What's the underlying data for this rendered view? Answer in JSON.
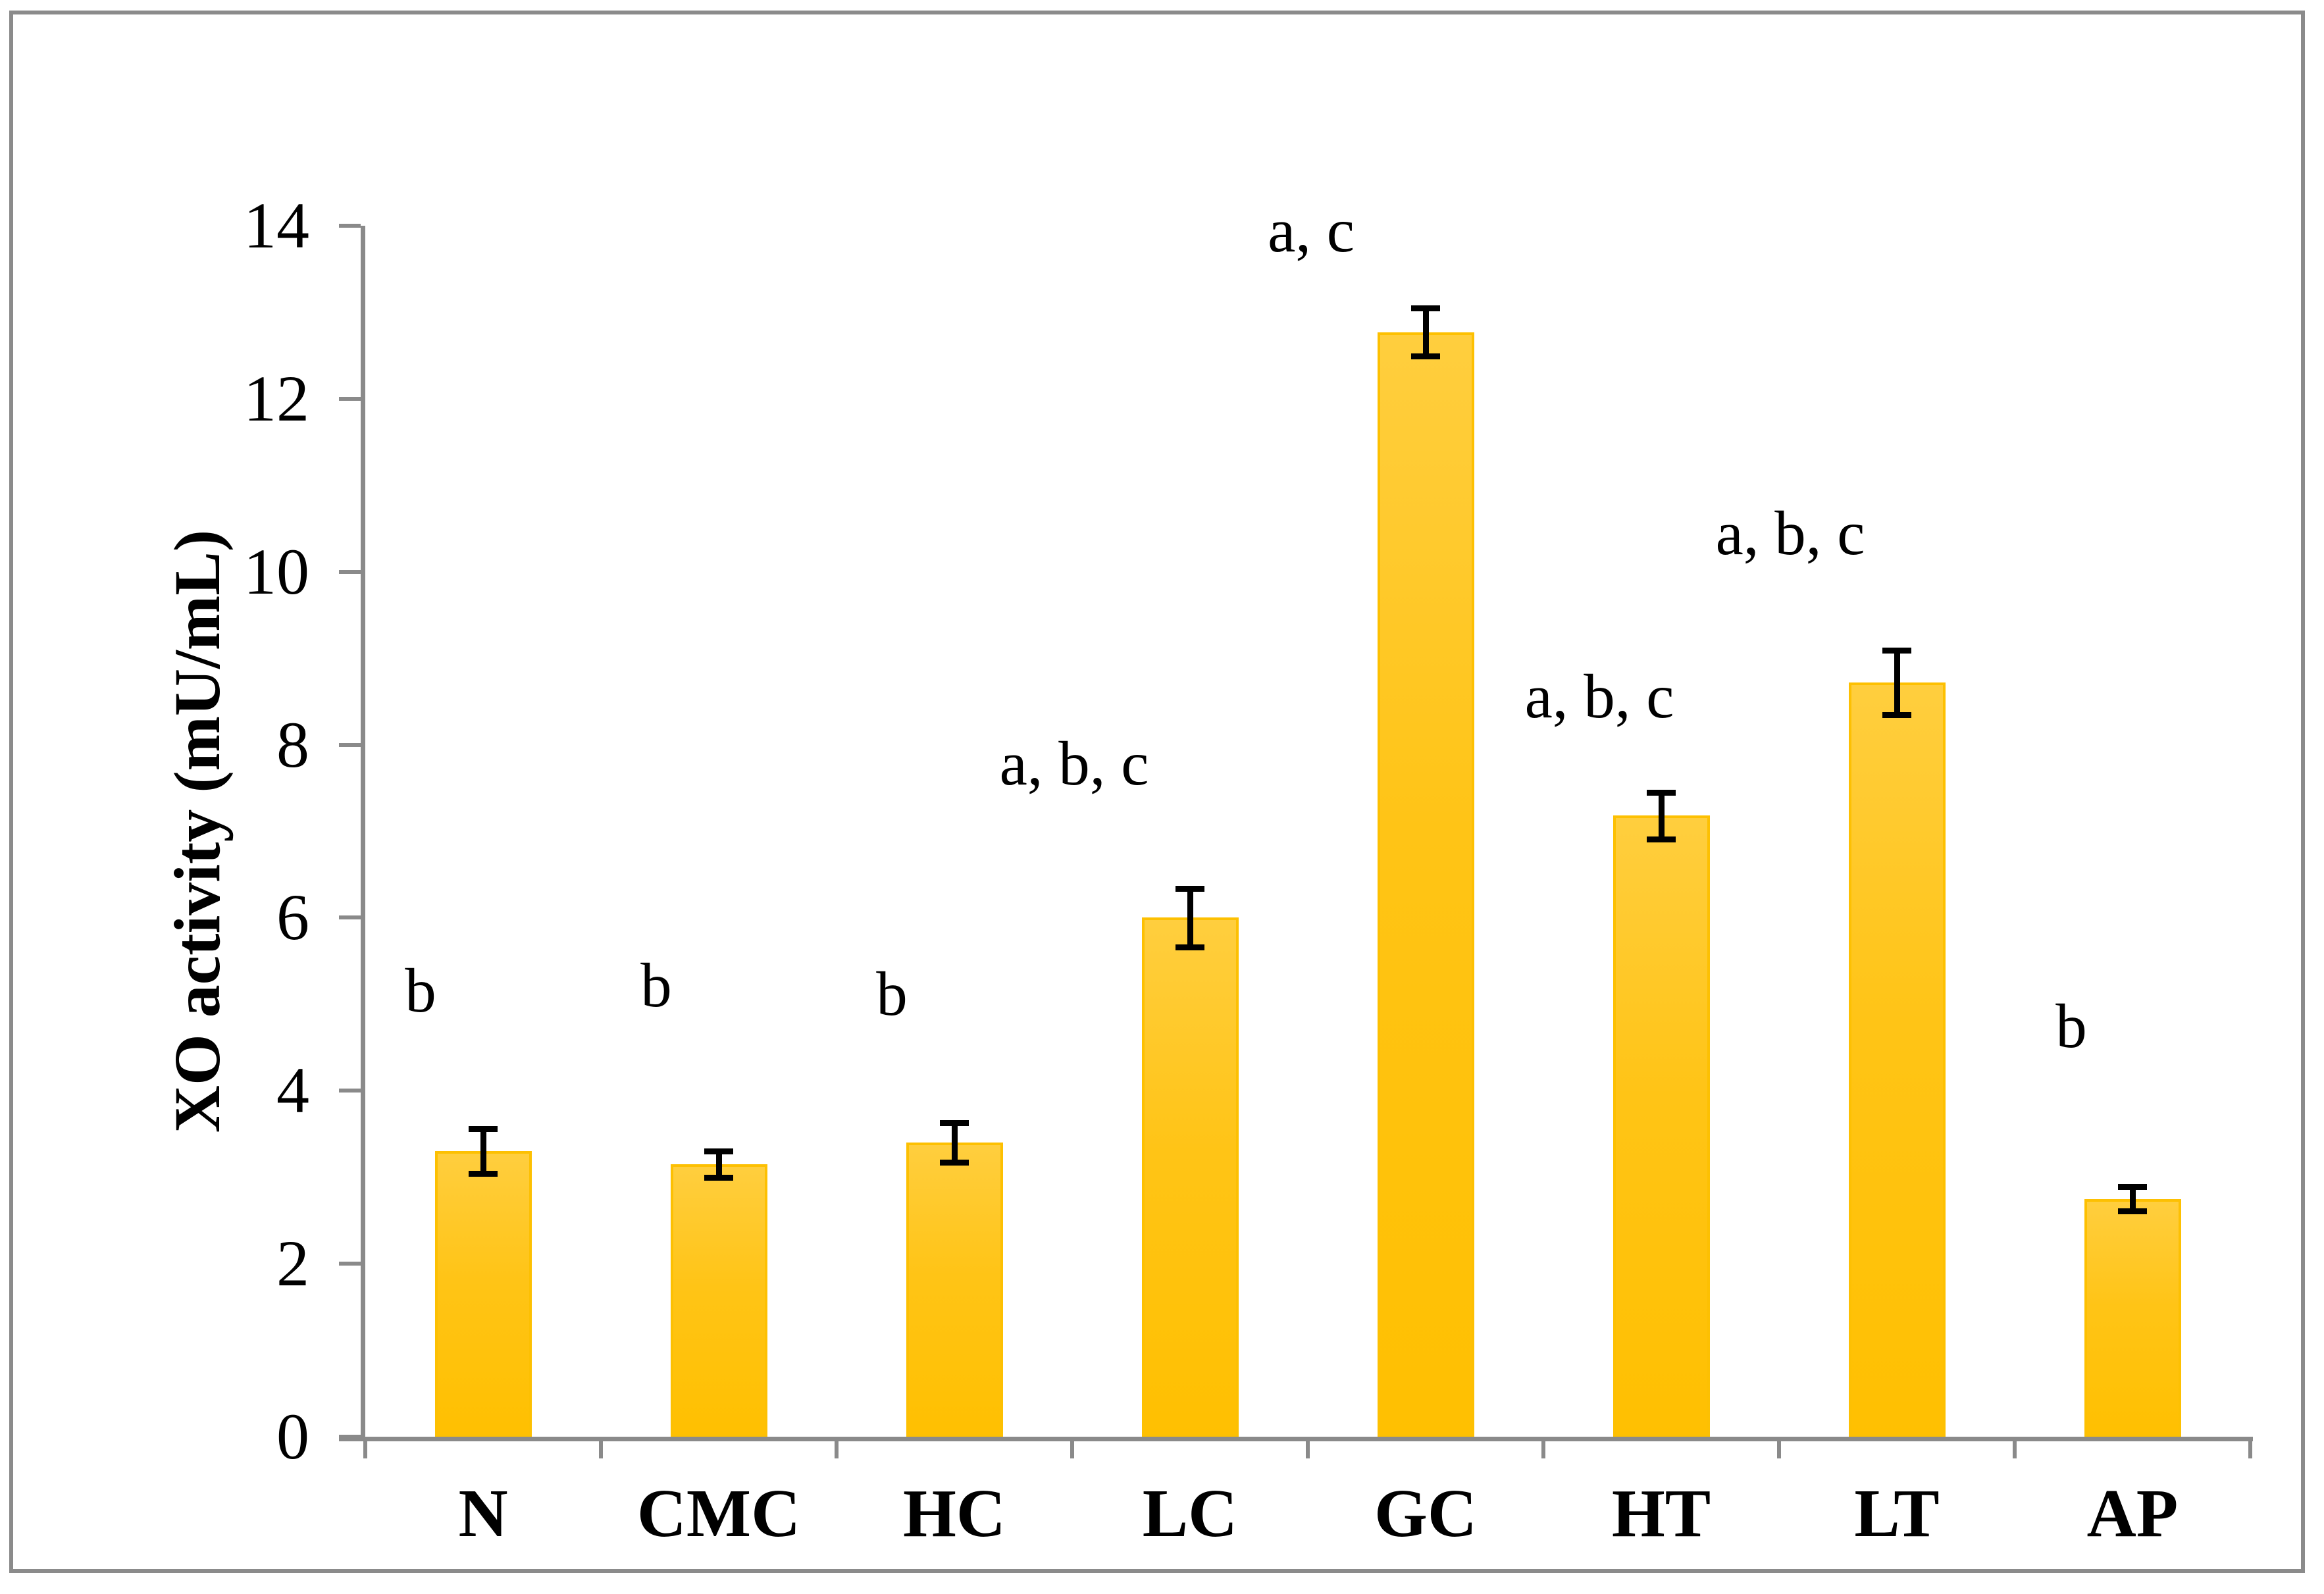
{
  "figure": {
    "background": "#ffffff",
    "border_color": "#8b8b8b"
  },
  "chart_data": {
    "type": "bar",
    "title": "",
    "xlabel": "",
    "ylabel": "XO activity (mU/mL)",
    "ylim": [
      0,
      14
    ],
    "yticks": [
      0,
      2,
      4,
      6,
      8,
      10,
      12,
      14
    ],
    "grid": false,
    "legend": null,
    "bar_color": "#FFC000",
    "bar_highlight_color": "#FFCE3E",
    "axis_color": "#8A8A8A",
    "error_bar_color": "#000000",
    "text_color": "#000000",
    "categories": [
      "N",
      "CMC",
      "HC",
      "LC",
      "GC",
      "HT",
      "LT",
      "AP"
    ],
    "values": [
      3.3,
      3.15,
      3.4,
      6.0,
      12.77,
      7.18,
      8.72,
      2.75
    ],
    "errors": [
      0.26,
      0.15,
      0.23,
      0.34,
      0.28,
      0.27,
      0.37,
      0.14
    ],
    "significance_labels": [
      "b",
      "b",
      "b",
      "a, b, c",
      "a, c",
      "a, b, c",
      "a, b, c",
      "b"
    ],
    "sig_label_y": [
      5.16,
      5.22,
      5.12,
      7.78,
      13.95,
      8.56,
      10.45,
      4.75
    ],
    "sig_label_dx": [
      -95,
      -95,
      -95,
      -176,
      -174,
      -94,
      -162,
      -93
    ]
  }
}
